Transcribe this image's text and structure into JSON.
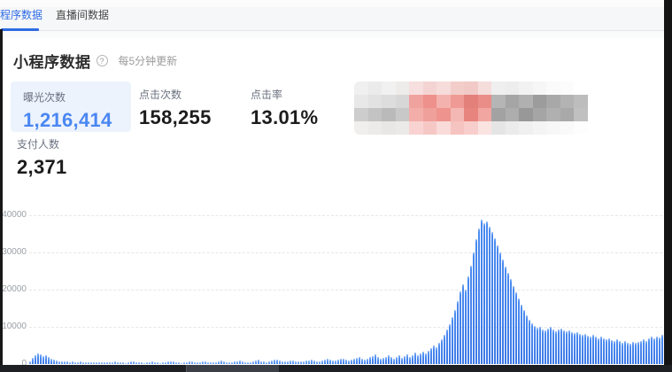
{
  "tabs": [
    {
      "label": "小程序数据",
      "active": true
    },
    {
      "label": "直播间数据",
      "active": false
    }
  ],
  "section": {
    "title": "小程序数据",
    "info_icon_glyph": "?",
    "update_note": "每5分钟更新"
  },
  "metrics": [
    {
      "label": "曝光次数",
      "value": "1,216,414",
      "highlighted": true
    },
    {
      "label": "点击次数",
      "value": "158,255",
      "highlighted": false
    },
    {
      "label": "点击率",
      "value": "13.01%",
      "highlighted": false
    },
    {
      "label": "支付人数",
      "value": "2,371",
      "highlighted": false
    }
  ],
  "colors": {
    "accent_blue": "#2e6ce4",
    "metric_blue": "#4a87f2",
    "card_bg": "#edf3fd",
    "bar_blue": "#4a8af0",
    "grid_gray": "#e7e7e7",
    "axis_text": "#9aa0a6"
  },
  "redaction": {
    "note": "pixelated-blur block hiding a metric",
    "rows": [
      [
        "#f1f0f0",
        "#ebebeb",
        "#f2f1f1",
        "#eeeceb",
        "#f6dfde",
        "#f4d4d2",
        "#f6dcda",
        "#f3cdca",
        "#f1c9c7",
        "#f5dddb",
        "#f0efef",
        "#ededed",
        "#f2f2f2",
        "#f6f6f6",
        "#fafafa",
        "#fcfcfc",
        "#ffffff"
      ],
      [
        "#e9e8e8",
        "#e3e2e2",
        "#dedddd",
        "#d8d7d7",
        "#f0a29e",
        "#ee908b",
        "#f3b2ae",
        "#ef9a94",
        "#e4807a",
        "#ea8d88",
        "#b5b5b5",
        "#a5a5a5",
        "#b0b0b0",
        "#9c9c9c",
        "#a8a8a8",
        "#b3b3b3",
        "#bdbdbd"
      ],
      [
        "#cecdcd",
        "#c4c3c3",
        "#bbbaba",
        "#c9c8c8",
        "#f3aeaa",
        "#f0a09b",
        "#ee938e",
        "#f4b8b4",
        "#e8847e",
        "#f1a6a1",
        "#a2a2a2",
        "#adadad",
        "#989898",
        "#a5a5a5",
        "#b0b0b0",
        "#a9a9a9",
        "#c0c0c0"
      ],
      [
        "#f0efee",
        "#ecebea",
        "#e8e7e6",
        "#eceae9",
        "#f8d3d1",
        "#f6c8c5",
        "#f9dbd9",
        "#f5c3c0",
        "#f7cecb",
        "#fae4e2",
        "#e5e5e5",
        "#ebebeb",
        "#f0f0f0",
        "#f4f4f4",
        "#f7f7f7",
        "#fafafa",
        "#fdfdfd"
      ]
    ]
  },
  "chart_data": {
    "type": "bar",
    "title": "",
    "xlabel": "",
    "ylabel": "",
    "x_axis_labels_visible": false,
    "legend": "none",
    "grid": "horizontal-dashed",
    "ylim": [
      0,
      42000
    ],
    "yticks": [
      0,
      10000,
      20000,
      30000,
      40000
    ],
    "values": [
      700,
      1600,
      2400,
      2900,
      2600,
      2100,
      2300,
      1800,
      1400,
      1100,
      900,
      800,
      700,
      600,
      650,
      550,
      600,
      500,
      550,
      600,
      450,
      500,
      550,
      450,
      500,
      400,
      450,
      500,
      400,
      450,
      400,
      500,
      700,
      550,
      450,
      400,
      350,
      450,
      600,
      750,
      550,
      450,
      400,
      350,
      400,
      550,
      700,
      500,
      400,
      350,
      400,
      500,
      650,
      800,
      600,
      450,
      400,
      350,
      400,
      500,
      650,
      800,
      550,
      450,
      500,
      600,
      750,
      550,
      500,
      450,
      550,
      700,
      850,
      600,
      500,
      450,
      500,
      650,
      800,
      950,
      700,
      550,
      500,
      550,
      700,
      900,
      1100,
      800,
      600,
      550,
      700,
      900,
      1200,
      1300,
      1000,
      750,
      600,
      700,
      850,
      1000,
      800,
      650,
      600,
      700,
      900,
      1050,
      1200,
      900,
      700,
      800,
      1000,
      1200,
      1400,
      1100,
      850,
      900,
      1100,
      1350,
      1500,
      1150,
      950,
      1100,
      1400,
      1700,
      2000,
      1500,
      1200,
      1400,
      1800,
      2200,
      2600,
      1900,
      1400,
      1600,
      2000,
      2400,
      1800,
      1500,
      1900,
      2300,
      1700,
      2100,
      2600,
      2000,
      2500,
      3000,
      2400,
      2900,
      3400,
      2800,
      3600,
      4300,
      5100,
      4500,
      5600,
      6600,
      7800,
      9200,
      10800,
      12600,
      14500,
      16800,
      19500,
      21500,
      20000,
      23500,
      26500,
      30000,
      33500,
      36500,
      38800,
      37800,
      38300,
      36800,
      35500,
      33800,
      31800,
      30000,
      28000,
      26300,
      24500,
      22800,
      21000,
      19300,
      17600,
      16000,
      14500,
      13200,
      12000,
      11000,
      10300,
      9700,
      10100,
      9400,
      9000,
      9600,
      9900,
      9300,
      8800,
      9200,
      9600,
      9100,
      8700,
      9000,
      8500,
      8300,
      8600,
      8100,
      7800,
      8200,
      7700,
      7400,
      7800,
      7300,
      7000,
      7400,
      6900,
      6600,
      7000,
      6500,
      6300,
      6600,
      6100,
      5800,
      6200,
      5700,
      5500,
      5900,
      5600,
      6000,
      6300,
      6700,
      6200,
      6900,
      7300,
      6800,
      7500,
      7200,
      7800,
      7600
    ]
  }
}
